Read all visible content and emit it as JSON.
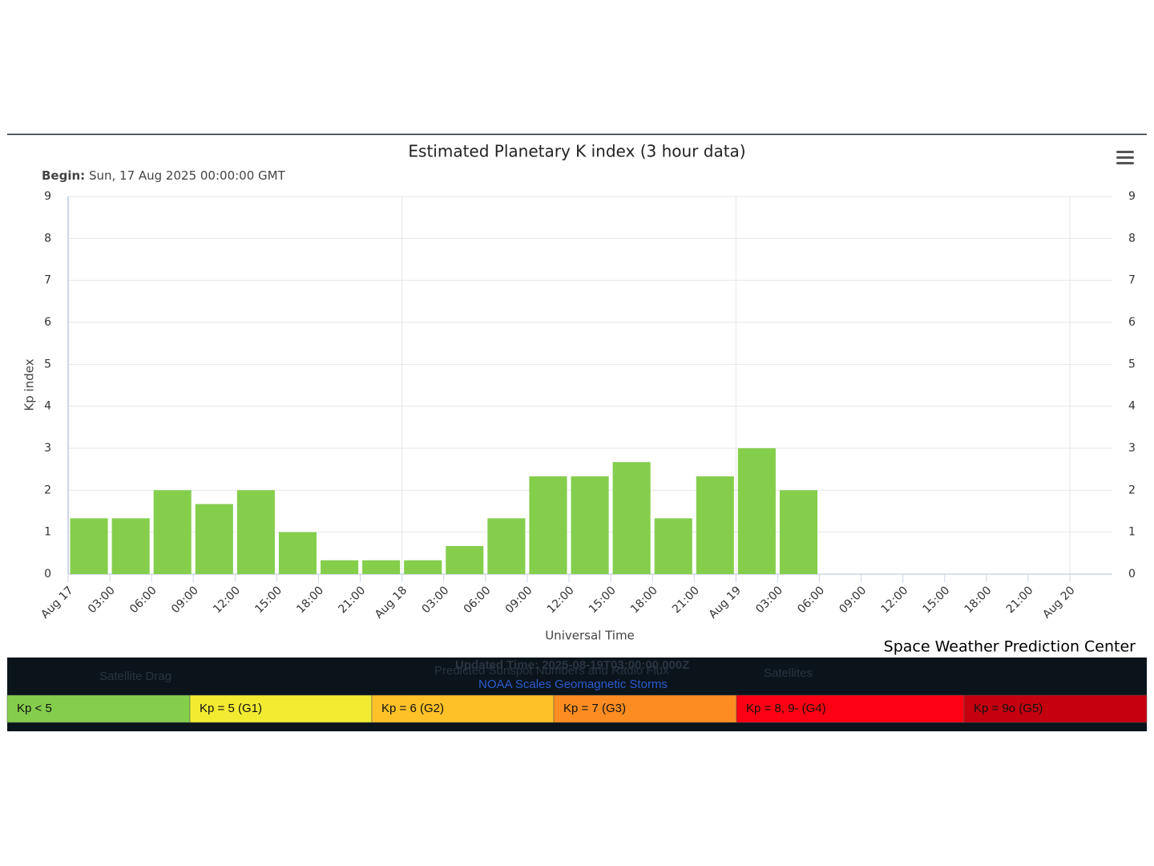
{
  "chart_data": {
    "type": "bar",
    "title": "Estimated Planetary K index (3 hour data)",
    "subtitle_label": "Begin:",
    "subtitle": "Sun, 17 Aug 2025 00:00:00 GMT",
    "x_label": "Universal Time",
    "y_label": "Kp index",
    "credit": "Space Weather Prediction Center",
    "xticks": [
      "Aug 17",
      "03:00",
      "06:00",
      "09:00",
      "12:00",
      "15:00",
      "18:00",
      "21:00",
      "Aug 18",
      "03:00",
      "06:00",
      "09:00",
      "12:00",
      "15:00",
      "18:00",
      "21:00",
      "Aug 19",
      "03:00",
      "06:00",
      "09:00",
      "12:00",
      "15:00",
      "18:00",
      "21:00",
      "Aug 20"
    ],
    "values": [
      1.33,
      1.33,
      2,
      1.67,
      2,
      1,
      0.33,
      0.33,
      0.33,
      0.67,
      1.33,
      2.33,
      2.33,
      2.67,
      1.33,
      2.33,
      3,
      2
    ],
    "color": "#84ce4c",
    "ylim": [
      0,
      9
    ],
    "yticks": [
      0,
      1,
      2,
      3,
      4,
      5,
      6,
      7,
      8,
      9
    ],
    "grid": true,
    "scale_legend": [
      {
        "label": "Kp < 5",
        "color": "#84ce4c"
      },
      {
        "label": "Kp = 5 (G1)",
        "color": "#f2eb32"
      },
      {
        "label": "Kp = 6 (G2)",
        "color": "#fec128"
      },
      {
        "label": "Kp = 7 (G3)",
        "color": "#fd8d22"
      },
      {
        "label": "Kp = 8, 9- (G4)",
        "color": "#fe0013"
      },
      {
        "label": "Kp = 9o (G5)",
        "color": "#c5000f"
      }
    ]
  },
  "background_text": {
    "updated": "Updated Time: 2025-08-19T03:00:00.000Z",
    "links": [
      "Satellite Drag",
      "Predicted Sunspot Numbers and Radio Flux",
      "NOAA Scales Geomagnetic Storms",
      "Satellites"
    ]
  }
}
